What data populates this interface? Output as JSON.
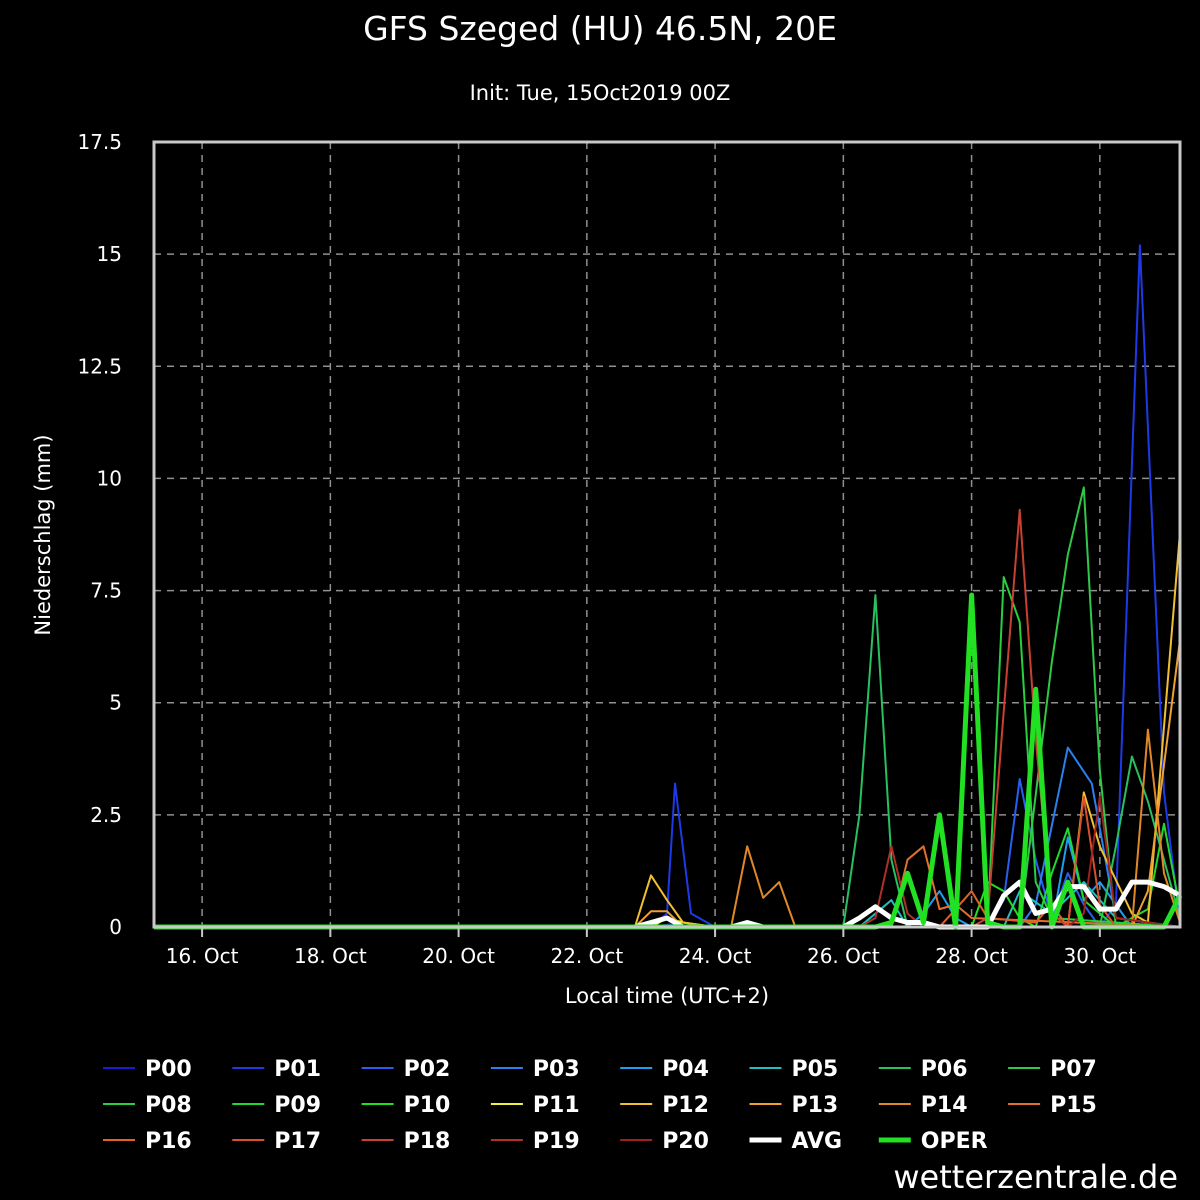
{
  "chart_data": {
    "type": "line",
    "title": "GFS Szeged (HU) 46.5N, 20E",
    "subtitle": "Init: Tue, 15Oct2019 00Z",
    "xlabel": "Local time (UTC+2)",
    "ylabel": "Niederschlag (mm)",
    "ylim": [
      0,
      17.5
    ],
    "xlim": [
      "2019-10-15T06:00",
      "2019-10-31T06:00"
    ],
    "yticks": [
      "0",
      "2.5",
      "5",
      "7.5",
      "10",
      "12.5",
      "15",
      "17.5"
    ],
    "xticks": [
      {
        "date": "2019-10-16T00:00",
        "label": "16. Oct"
      },
      {
        "date": "2019-10-18T00:00",
        "label": "18. Oct"
      },
      {
        "date": "2019-10-20T00:00",
        "label": "20. Oct"
      },
      {
        "date": "2019-10-22T00:00",
        "label": "22. Oct"
      },
      {
        "date": "2019-10-24T00:00",
        "label": "24. Oct"
      },
      {
        "date": "2019-10-26T00:00",
        "label": "26. Oct"
      },
      {
        "date": "2019-10-28T00:00",
        "label": "28. Oct"
      },
      {
        "date": "2019-10-30T00:00",
        "label": "30. Oct"
      }
    ],
    "grid": true,
    "legend_position": "bottom",
    "series": [
      {
        "name": "P00",
        "color": "#1a1ad8",
        "points": [
          [
            "2019-10-15T06:00",
            0
          ],
          [
            "2019-10-23T00:00",
            0
          ],
          [
            "2019-10-23T12:00",
            0.1
          ],
          [
            "2019-10-24T00:00",
            0
          ],
          [
            "2019-10-31T06:00",
            0
          ]
        ]
      },
      {
        "name": "P01",
        "color": "#1e3ae6",
        "points": [
          [
            "2019-10-15T06:00",
            0
          ],
          [
            "2019-10-23T00:00",
            0
          ],
          [
            "2019-10-23T06:00",
            0.3
          ],
          [
            "2019-10-23T09:00",
            3.2
          ],
          [
            "2019-10-23T15:00",
            0.3
          ],
          [
            "2019-10-24T00:00",
            0
          ],
          [
            "2019-10-30T00:00",
            0
          ],
          [
            "2019-10-30T06:00",
            0.5
          ],
          [
            "2019-10-30T15:00",
            15.2
          ],
          [
            "2019-10-31T00:00",
            3.0
          ],
          [
            "2019-10-31T06:00",
            0.1
          ]
        ]
      },
      {
        "name": "P02",
        "color": "#2a5ef0",
        "points": [
          [
            "2019-10-15T06:00",
            0
          ],
          [
            "2019-10-28T06:00",
            0
          ],
          [
            "2019-10-28T12:00",
            0.6
          ],
          [
            "2019-10-28T18:00",
            3.3
          ],
          [
            "2019-10-29T00:00",
            1.5
          ],
          [
            "2019-10-29T06:00",
            0.2
          ],
          [
            "2019-10-29T12:00",
            1.2
          ],
          [
            "2019-10-29T18:00",
            0.5
          ],
          [
            "2019-10-30T00:00",
            0
          ],
          [
            "2019-10-31T06:00",
            0
          ]
        ]
      },
      {
        "name": "P03",
        "color": "#2a80f0",
        "points": [
          [
            "2019-10-15T06:00",
            0
          ],
          [
            "2019-10-28T18:00",
            0
          ],
          [
            "2019-10-29T00:00",
            0.5
          ],
          [
            "2019-10-29T12:00",
            4.0
          ],
          [
            "2019-10-29T21:00",
            3.2
          ],
          [
            "2019-10-30T06:00",
            0.2
          ],
          [
            "2019-10-31T06:00",
            0
          ]
        ]
      },
      {
        "name": "P04",
        "color": "#1e9ef0",
        "points": [
          [
            "2019-10-15T06:00",
            0
          ],
          [
            "2019-10-27T00:00",
            0
          ],
          [
            "2019-10-27T06:00",
            0.3
          ],
          [
            "2019-10-27T12:00",
            0.8
          ],
          [
            "2019-10-27T18:00",
            0.2
          ],
          [
            "2019-10-28T00:00",
            0
          ],
          [
            "2019-10-29T06:00",
            0
          ],
          [
            "2019-10-29T12:00",
            2.0
          ],
          [
            "2019-10-29T18:00",
            0.6
          ],
          [
            "2019-10-30T00:00",
            1.0
          ],
          [
            "2019-10-30T12:00",
            0
          ],
          [
            "2019-10-31T06:00",
            0
          ]
        ]
      },
      {
        "name": "P05",
        "color": "#20c0c0",
        "points": [
          [
            "2019-10-15T06:00",
            0
          ],
          [
            "2019-10-26T06:00",
            0
          ],
          [
            "2019-10-26T18:00",
            0.6
          ],
          [
            "2019-10-27T00:00",
            0
          ],
          [
            "2019-10-28T12:00",
            0
          ],
          [
            "2019-10-28T18:00",
            0.8
          ],
          [
            "2019-10-29T06:00",
            0.3
          ],
          [
            "2019-10-29T18:00",
            1.0
          ],
          [
            "2019-10-30T06:00",
            0.2
          ],
          [
            "2019-10-31T06:00",
            0
          ]
        ]
      },
      {
        "name": "P06",
        "color": "#28c060",
        "points": [
          [
            "2019-10-15T06:00",
            0
          ],
          [
            "2019-10-26T00:00",
            0
          ],
          [
            "2019-10-26T06:00",
            2.5
          ],
          [
            "2019-10-26T12:00",
            7.4
          ],
          [
            "2019-10-26T18:00",
            1.5
          ],
          [
            "2019-10-27T00:00",
            0
          ],
          [
            "2019-10-30T00:00",
            0
          ],
          [
            "2019-10-30T06:00",
            1.8
          ],
          [
            "2019-10-30T12:00",
            3.8
          ],
          [
            "2019-10-30T18:00",
            2.8
          ],
          [
            "2019-10-31T06:00",
            0.2
          ]
        ]
      },
      {
        "name": "P07",
        "color": "#30c848",
        "points": [
          [
            "2019-10-15T06:00",
            0
          ],
          [
            "2019-10-28T18:00",
            0
          ],
          [
            "2019-10-29T06:00",
            5.9
          ],
          [
            "2019-10-29T12:00",
            8.3
          ],
          [
            "2019-10-29T18:00",
            9.8
          ],
          [
            "2019-10-30T00:00",
            3.5
          ],
          [
            "2019-10-30T06:00",
            0
          ],
          [
            "2019-10-31T06:00",
            0
          ]
        ]
      },
      {
        "name": "P08",
        "color": "#28d040",
        "points": [
          [
            "2019-10-15T06:00",
            0
          ],
          [
            "2019-10-28T06:00",
            0
          ],
          [
            "2019-10-28T12:00",
            7.8
          ],
          [
            "2019-10-28T18:00",
            6.8
          ],
          [
            "2019-10-29T00:00",
            1.0
          ],
          [
            "2019-10-29T06:00",
            0.2
          ],
          [
            "2019-10-31T06:00",
            0
          ]
        ]
      },
      {
        "name": "P09",
        "color": "#22d830",
        "points": [
          [
            "2019-10-15T06:00",
            0
          ],
          [
            "2019-10-29T00:00",
            0
          ],
          [
            "2019-10-29T06:00",
            1.2
          ],
          [
            "2019-10-29T12:00",
            2.2
          ],
          [
            "2019-10-29T18:00",
            0.6
          ],
          [
            "2019-10-30T06:00",
            0
          ],
          [
            "2019-10-30T18:00",
            0.4
          ],
          [
            "2019-10-31T00:00",
            2.3
          ],
          [
            "2019-10-31T06:00",
            0.4
          ]
        ]
      },
      {
        "name": "P10",
        "color": "#20e020",
        "points": [
          [
            "2019-10-15T06:00",
            0
          ],
          [
            "2019-10-28T00:00",
            0
          ],
          [
            "2019-10-28T06:00",
            1.0
          ],
          [
            "2019-10-28T12:00",
            0.8
          ],
          [
            "2019-10-28T18:00",
            0.2
          ],
          [
            "2019-10-29T00:00",
            0
          ],
          [
            "2019-10-31T06:00",
            0
          ]
        ]
      },
      {
        "name": "P11",
        "color": "#f0f040",
        "points": [
          [
            "2019-10-15T06:00",
            0
          ],
          [
            "2019-10-23T00:00",
            0
          ],
          [
            "2019-10-23T06:00",
            0.2
          ],
          [
            "2019-10-23T12:00",
            0.1
          ],
          [
            "2019-10-24T00:00",
            0
          ],
          [
            "2019-10-31T06:00",
            0
          ]
        ]
      },
      {
        "name": "P12",
        "color": "#f0c030",
        "points": [
          [
            "2019-10-15T06:00",
            0
          ],
          [
            "2019-10-22T18:00",
            0
          ],
          [
            "2019-10-23T00:00",
            1.15
          ],
          [
            "2019-10-23T06:00",
            0.6
          ],
          [
            "2019-10-23T12:00",
            0.1
          ],
          [
            "2019-10-24T00:00",
            0
          ],
          [
            "2019-10-29T12:00",
            0
          ],
          [
            "2019-10-29T18:00",
            3.0
          ],
          [
            "2019-10-30T00:00",
            1.8
          ],
          [
            "2019-10-30T12:00",
            0.3
          ],
          [
            "2019-10-30T18:00",
            0.1
          ],
          [
            "2019-10-31T06:00",
            8.8
          ]
        ]
      },
      {
        "name": "P13",
        "color": "#f0a030",
        "points": [
          [
            "2019-10-15T06:00",
            0
          ],
          [
            "2019-10-22T18:00",
            0
          ],
          [
            "2019-10-23T00:00",
            0.35
          ],
          [
            "2019-10-23T06:00",
            0.35
          ],
          [
            "2019-10-23T12:00",
            0
          ],
          [
            "2019-10-30T12:00",
            0
          ],
          [
            "2019-10-30T18:00",
            0.8
          ],
          [
            "2019-10-31T06:00",
            6.4
          ]
        ]
      },
      {
        "name": "P14",
        "color": "#e08828",
        "points": [
          [
            "2019-10-15T06:00",
            0
          ],
          [
            "2019-10-24T06:00",
            0
          ],
          [
            "2019-10-24T12:00",
            1.8
          ],
          [
            "2019-10-24T18:00",
            0.65
          ],
          [
            "2019-10-25T00:00",
            1.0
          ],
          [
            "2019-10-25T06:00",
            0
          ],
          [
            "2019-10-30T12:00",
            0
          ],
          [
            "2019-10-30T18:00",
            4.4
          ],
          [
            "2019-10-31T00:00",
            1.2
          ],
          [
            "2019-10-31T06:00",
            0.1
          ]
        ]
      },
      {
        "name": "P15",
        "color": "#e07030",
        "points": [
          [
            "2019-10-15T06:00",
            0
          ],
          [
            "2019-10-26T18:00",
            0
          ],
          [
            "2019-10-27T00:00",
            1.5
          ],
          [
            "2019-10-27T06:00",
            1.8
          ],
          [
            "2019-10-27T12:00",
            0.4
          ],
          [
            "2019-10-27T18:00",
            0.5
          ],
          [
            "2019-10-28T00:00",
            0.2
          ],
          [
            "2019-10-31T06:00",
            0
          ]
        ]
      },
      {
        "name": "P16",
        "color": "#e06028",
        "points": [
          [
            "2019-10-15T06:00",
            0
          ],
          [
            "2019-10-27T12:00",
            0
          ],
          [
            "2019-10-27T18:00",
            0.4
          ],
          [
            "2019-10-28T00:00",
            0.8
          ],
          [
            "2019-10-28T06:00",
            0.2
          ],
          [
            "2019-10-29T00:00",
            0.1
          ],
          [
            "2019-10-29T06:00",
            0.5
          ],
          [
            "2019-10-29T12:00",
            0
          ],
          [
            "2019-10-31T06:00",
            0
          ]
        ]
      },
      {
        "name": "P17",
        "color": "#d85030",
        "points": [
          [
            "2019-10-15T06:00",
            0
          ],
          [
            "2019-10-29T12:00",
            0
          ],
          [
            "2019-10-29T18:00",
            2.9
          ],
          [
            "2019-10-30T00:00",
            0.5
          ],
          [
            "2019-10-30T06:00",
            0
          ],
          [
            "2019-10-31T06:00",
            0
          ]
        ]
      },
      {
        "name": "P18",
        "color": "#c84030",
        "points": [
          [
            "2019-10-15T06:00",
            0
          ],
          [
            "2019-10-28T00:00",
            0
          ],
          [
            "2019-10-28T06:00",
            0.2
          ],
          [
            "2019-10-28T12:00",
            4.8
          ],
          [
            "2019-10-28T18:00",
            9.3
          ],
          [
            "2019-10-29T00:00",
            4.2
          ],
          [
            "2019-10-29T06:00",
            0.3
          ],
          [
            "2019-10-29T12:00",
            0
          ],
          [
            "2019-10-31T06:00",
            0
          ]
        ]
      },
      {
        "name": "P19",
        "color": "#b03028",
        "points": [
          [
            "2019-10-15T06:00",
            0
          ],
          [
            "2019-10-26T06:00",
            0
          ],
          [
            "2019-10-26T12:00",
            0.2
          ],
          [
            "2019-10-26T18:00",
            1.8
          ],
          [
            "2019-10-27T00:00",
            0.3
          ],
          [
            "2019-10-27T06:00",
            0
          ],
          [
            "2019-10-31T06:00",
            0
          ]
        ]
      },
      {
        "name": "P20",
        "color": "#a02020",
        "points": [
          [
            "2019-10-15T06:00",
            0
          ],
          [
            "2019-10-29T12:00",
            0
          ],
          [
            "2019-10-29T18:00",
            0.3
          ],
          [
            "2019-10-30T00:00",
            2.9
          ],
          [
            "2019-10-30T06:00",
            0.2
          ],
          [
            "2019-10-31T06:00",
            0
          ]
        ]
      },
      {
        "name": "AVG",
        "color": "#ffffff",
        "width": 5,
        "points": [
          [
            "2019-10-15T06:00",
            0
          ],
          [
            "2019-10-22T18:00",
            0
          ],
          [
            "2019-10-23T00:00",
            0.1
          ],
          [
            "2019-10-23T06:00",
            0.2
          ],
          [
            "2019-10-23T12:00",
            0
          ],
          [
            "2019-10-24T06:00",
            0
          ],
          [
            "2019-10-24T12:00",
            0.1
          ],
          [
            "2019-10-24T18:00",
            0
          ],
          [
            "2019-10-26T00:00",
            0
          ],
          [
            "2019-10-26T06:00",
            0.2
          ],
          [
            "2019-10-26T12:00",
            0.45
          ],
          [
            "2019-10-26T18:00",
            0.2
          ],
          [
            "2019-10-27T00:00",
            0.1
          ],
          [
            "2019-10-27T06:00",
            0.1
          ],
          [
            "2019-10-27T12:00",
            0
          ],
          [
            "2019-10-28T06:00",
            0
          ],
          [
            "2019-10-28T12:00",
            0.7
          ],
          [
            "2019-10-28T18:00",
            1.0
          ],
          [
            "2019-10-29T00:00",
            0.3
          ],
          [
            "2019-10-29T06:00",
            0.4
          ],
          [
            "2019-10-29T12:00",
            0.9
          ],
          [
            "2019-10-29T18:00",
            0.9
          ],
          [
            "2019-10-30T00:00",
            0.4
          ],
          [
            "2019-10-30T06:00",
            0.4
          ],
          [
            "2019-10-30T12:00",
            1.0
          ],
          [
            "2019-10-30T18:00",
            1.0
          ],
          [
            "2019-10-31T00:00",
            0.9
          ],
          [
            "2019-10-31T06:00",
            0.7
          ]
        ]
      },
      {
        "name": "OPER",
        "color": "#22e022",
        "width": 5,
        "points": [
          [
            "2019-10-15T06:00",
            0
          ],
          [
            "2019-10-26T12:00",
            0
          ],
          [
            "2019-10-26T18:00",
            0.1
          ],
          [
            "2019-10-27T00:00",
            1.2
          ],
          [
            "2019-10-27T06:00",
            0.1
          ],
          [
            "2019-10-27T12:00",
            2.5
          ],
          [
            "2019-10-27T18:00",
            0
          ],
          [
            "2019-10-28T00:00",
            7.4
          ],
          [
            "2019-10-28T06:00",
            0.1
          ],
          [
            "2019-10-28T12:00",
            0
          ],
          [
            "2019-10-28T18:00",
            0
          ],
          [
            "2019-10-29T00:00",
            5.3
          ],
          [
            "2019-10-29T06:00",
            0
          ],
          [
            "2019-10-29T12:00",
            1.0
          ],
          [
            "2019-10-29T18:00",
            0
          ],
          [
            "2019-10-30T18:00",
            0
          ],
          [
            "2019-10-31T00:00",
            0
          ],
          [
            "2019-10-31T06:00",
            0.7
          ]
        ]
      }
    ]
  },
  "branding": {
    "text": "wetterzentrale.de"
  }
}
